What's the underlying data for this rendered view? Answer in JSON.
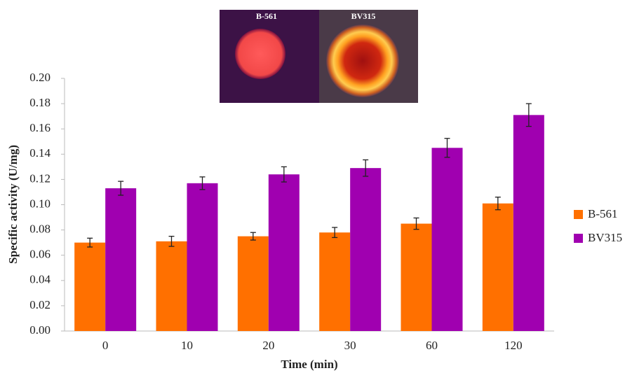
{
  "chart_data": {
    "type": "bar",
    "image_labels": [
      "B-561",
      "BV315"
    ],
    "y_label": "Specific activity (U/mg)",
    "x_label": "Time (min)",
    "categories": [
      "0",
      "10",
      "20",
      "30",
      "60",
      "120"
    ],
    "series": [
      {
        "name": "B-561",
        "color": "#ff7000",
        "values": [
          0.07,
          0.071,
          0.075,
          0.078,
          0.085,
          0.101
        ],
        "errors": [
          0.0035,
          0.004,
          0.003,
          0.004,
          0.0045,
          0.005
        ]
      },
      {
        "name": "BV315",
        "color": "#a000b0",
        "values": [
          0.113,
          0.117,
          0.124,
          0.129,
          0.145,
          0.171
        ],
        "errors": [
          0.0055,
          0.005,
          0.006,
          0.0065,
          0.0075,
          0.009
        ]
      }
    ],
    "ylim": [
      0,
      0.2
    ],
    "yticks": [
      {
        "value": 0,
        "label": "0.00"
      },
      {
        "value": 0.02,
        "label": "0.02"
      },
      {
        "value": 0.04,
        "label": "0.04"
      },
      {
        "value": 0.06,
        "label": "0.06"
      },
      {
        "value": 0.08,
        "label": "0.08"
      },
      {
        "value": 0.1,
        "label": "0.10"
      },
      {
        "value": 0.12,
        "label": "0.12"
      },
      {
        "value": 0.14,
        "label": "0.14"
      },
      {
        "value": 0.16,
        "label": "0.16"
      },
      {
        "value": 0.18,
        "label": "0.18"
      },
      {
        "value": 0.2,
        "label": "0.20"
      }
    ],
    "legend": "right"
  }
}
